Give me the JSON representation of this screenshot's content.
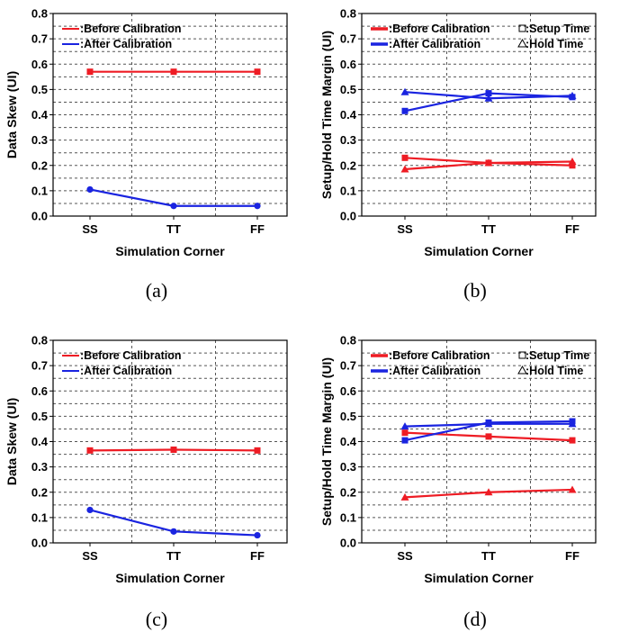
{
  "colors": {
    "before": "#ee1c24",
    "after": "#1a24e0"
  },
  "charts": [
    {
      "type": "line",
      "panel_label": "(a)",
      "xlabel": "Simulation Corner",
      "ylabel": "Data Skew (UI)",
      "categories": [
        "SS",
        "TT",
        "FF"
      ],
      "ylim": [
        0,
        0.8
      ],
      "yticks": [
        "0.0",
        "0.1",
        "0.2",
        "0.3",
        "0.4",
        "0.5",
        "0.6",
        "0.7",
        "0.8"
      ],
      "grid": true,
      "legend": {
        "position": "top-left",
        "entries": [
          ":Before Calibration",
          ":After Calibration"
        ],
        "extra_entries": []
      },
      "series": [
        {
          "name": "Before Calibration",
          "color_key": "before",
          "marker": "square",
          "values": [
            0.57,
            0.57,
            0.57
          ]
        },
        {
          "name": "After Calibration",
          "color_key": "after",
          "marker": "circle",
          "values": [
            0.105,
            0.04,
            0.04
          ]
        }
      ]
    },
    {
      "type": "line",
      "panel_label": "(b)",
      "xlabel": "Simulation Corner",
      "ylabel": "Setup/Hold Time Margin (UI)",
      "categories": [
        "SS",
        "TT",
        "FF"
      ],
      "ylim": [
        0,
        0.8
      ],
      "yticks": [
        "0.0",
        "0.1",
        "0.2",
        "0.3",
        "0.4",
        "0.5",
        "0.6",
        "0.7",
        "0.8"
      ],
      "grid": true,
      "legend": {
        "position": "top-left",
        "entries": [
          ":Before Calibration",
          ":After Calibration"
        ],
        "extra_entries": [
          ":Setup Time",
          ":Hold Time"
        ]
      },
      "series": [
        {
          "name": "Before Calibration - Setup Time",
          "color_key": "before",
          "marker": "square",
          "values": [
            0.23,
            0.21,
            0.2
          ]
        },
        {
          "name": "Before Calibration - Hold Time",
          "color_key": "before",
          "marker": "triangle",
          "values": [
            0.185,
            0.21,
            0.215
          ]
        },
        {
          "name": "After Calibration - Setup Time",
          "color_key": "after",
          "marker": "square",
          "values": [
            0.415,
            0.485,
            0.47
          ]
        },
        {
          "name": "After Calibration - Hold Time",
          "color_key": "after",
          "marker": "triangle",
          "values": [
            0.49,
            0.465,
            0.475
          ]
        }
      ]
    },
    {
      "type": "line",
      "panel_label": "(c)",
      "xlabel": "Simulation Corner",
      "ylabel": "Data Skew (UI)",
      "categories": [
        "SS",
        "TT",
        "FF"
      ],
      "ylim": [
        0,
        0.8
      ],
      "yticks": [
        "0.0",
        "0.1",
        "0.2",
        "0.3",
        "0.4",
        "0.5",
        "0.6",
        "0.7",
        "0.8"
      ],
      "grid": true,
      "legend": {
        "position": "top-left",
        "entries": [
          ":Before Calibration",
          ":After Calibration"
        ],
        "extra_entries": []
      },
      "series": [
        {
          "name": "Before Calibration",
          "color_key": "before",
          "marker": "square",
          "values": [
            0.365,
            0.368,
            0.365
          ]
        },
        {
          "name": "After Calibration",
          "color_key": "after",
          "marker": "circle",
          "values": [
            0.13,
            0.045,
            0.03
          ]
        }
      ]
    },
    {
      "type": "line",
      "panel_label": "(d)",
      "xlabel": "Simulation Corner",
      "ylabel": "Setup/Hold Time Margin (UI)",
      "categories": [
        "SS",
        "TT",
        "FF"
      ],
      "ylim": [
        0,
        0.8
      ],
      "yticks": [
        "0.0",
        "0.1",
        "0.2",
        "0.3",
        "0.4",
        "0.5",
        "0.6",
        "0.7",
        "0.8"
      ],
      "grid": true,
      "legend": {
        "position": "top-left",
        "entries": [
          ":Before Calibration",
          ":After Calibration"
        ],
        "extra_entries": [
          ":Setup Time",
          ":Hold Time"
        ]
      },
      "series": [
        {
          "name": "Before Calibration - Setup Time",
          "color_key": "before",
          "marker": "square",
          "values": [
            0.435,
            0.42,
            0.405
          ]
        },
        {
          "name": "Before Calibration - Hold Time",
          "color_key": "before",
          "marker": "triangle",
          "values": [
            0.18,
            0.2,
            0.21
          ]
        },
        {
          "name": "After Calibration - Setup Time",
          "color_key": "after",
          "marker": "square",
          "values": [
            0.405,
            0.475,
            0.48
          ]
        },
        {
          "name": "After Calibration - Hold Time",
          "color_key": "after",
          "marker": "triangle",
          "values": [
            0.46,
            0.47,
            0.47
          ]
        }
      ]
    }
  ]
}
